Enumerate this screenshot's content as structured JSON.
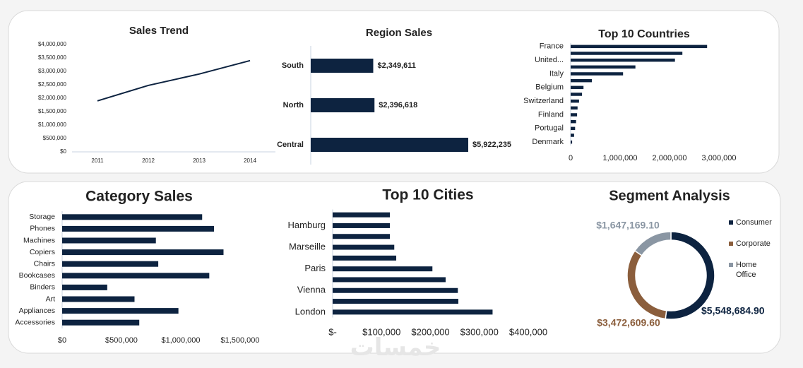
{
  "chart_data": [
    {
      "type": "line",
      "title": "Sales Trend",
      "categories": [
        "2011",
        "2012",
        "2013",
        "2014"
      ],
      "values": [
        1900000,
        2475000,
        2900000,
        3400000
      ],
      "color": "#0d2340",
      "ylim": [
        0,
        4000000
      ],
      "yticks": [
        {
          "value": 0,
          "label": "$0"
        },
        {
          "value": 500000,
          "label": "$500,000"
        },
        {
          "value": 1000000,
          "label": "$1,000,000"
        },
        {
          "value": 1500000,
          "label": "$1,500,000"
        },
        {
          "value": 2000000,
          "label": "$2,000,000"
        },
        {
          "value": 2500000,
          "label": "$2,500,000"
        },
        {
          "value": 3000000,
          "label": "$3,000,000"
        },
        {
          "value": 3500000,
          "label": "$3,500,000"
        },
        {
          "value": 4000000,
          "label": "$4,000,000"
        }
      ]
    },
    {
      "type": "hbar",
      "title": "Region Sales",
      "categories": [
        "South",
        "North",
        "Central"
      ],
      "values": [
        2349611,
        2396618,
        5922235
      ],
      "value_labels": [
        "$2,349,611",
        "$2,396,618",
        "$5,922,235"
      ],
      "color": "#0d2340"
    },
    {
      "type": "hbar",
      "title": "Top 10 Countries",
      "categories": [
        "France",
        null,
        "United...",
        null,
        "Italy",
        null,
        "Belgium",
        null,
        "Switzerland",
        null,
        "Finland",
        null,
        "Portugal",
        null,
        "Denmark"
      ],
      "values": [
        2760000,
        2260000,
        2110000,
        1310000,
        1060000,
        430000,
        260000,
        230000,
        170000,
        140000,
        130000,
        110000,
        90000,
        70000,
        30000
      ],
      "color": "#0d2340",
      "xlim": [
        0,
        3000000
      ],
      "xticks": [
        0,
        {
          "value": 1000000,
          "label": "1,000,000"
        },
        {
          "value": 2000000,
          "label": "2,000,000"
        },
        {
          "value": 3000000,
          "label": "3,000,000"
        }
      ]
    },
    {
      "type": "hbar",
      "title": "Category Sales",
      "categories": [
        "Storage",
        "Phones",
        "Machines",
        "Copiers",
        "Chairs",
        "Bookcases",
        "Binders",
        "Art",
        "Appliances",
        "Accessories"
      ],
      "values": [
        1180000,
        1280000,
        790000,
        1360000,
        810000,
        1240000,
        380000,
        610000,
        980000,
        650000
      ],
      "color": "#0d2340",
      "xlim": [
        0,
        1500000
      ],
      "xticks": [
        {
          "value": 0,
          "label": "$0"
        },
        {
          "value": 500000,
          "label": "$500,000"
        },
        {
          "value": 1000000,
          "label": "$1,000,000"
        },
        {
          "value": 1500000,
          "label": "$1,500,000"
        }
      ]
    },
    {
      "type": "hbar",
      "title": "Top 10 Cities",
      "categories": [
        null,
        "Hamburg",
        null,
        "Marseille",
        null,
        "Paris",
        null,
        "Vienna",
        null,
        "London"
      ],
      "values": [
        117000,
        117000,
        117000,
        126000,
        130000,
        204000,
        231000,
        256000,
        257000,
        327000
      ],
      "color": "#0d2340",
      "xlim": [
        0,
        400000
      ],
      "xticks": [
        {
          "value": 0,
          "label": "$-"
        },
        {
          "value": 100000,
          "label": "$100,000"
        },
        {
          "value": 200000,
          "label": "$200,000"
        },
        {
          "value": 300000,
          "label": "$300,000"
        },
        {
          "value": 400000,
          "label": "$400,000"
        }
      ]
    },
    {
      "type": "donut",
      "title": "Segment Analysis",
      "categories": [
        "Consumer",
        "Corporate",
        "Home Office"
      ],
      "values": [
        5548684.9,
        3472609.6,
        1647169.1
      ],
      "value_labels": [
        "$5,548,684.90",
        "$3,472,609.60",
        "$1,647,169.10"
      ],
      "colors": [
        "#0d2340",
        "#8b5e3c",
        "#8a96a3"
      ]
    }
  ],
  "watermark": "خمسات"
}
